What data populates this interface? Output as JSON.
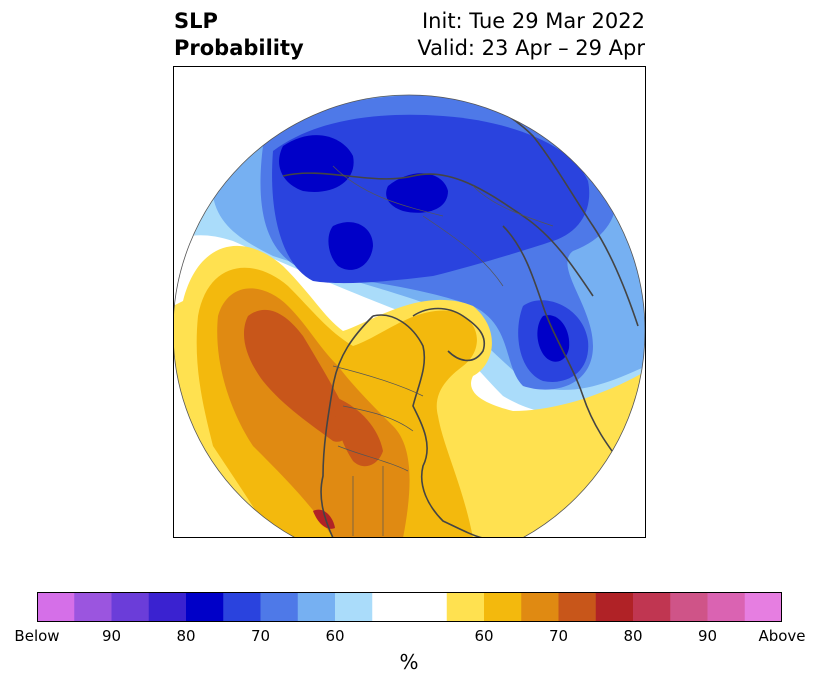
{
  "title": {
    "left_line1": "SLP",
    "left_line2": "Probability",
    "right_line1": "Init: Tue 29 Mar 2022",
    "right_line2": "Valid: 23 Apr – 29 Apr"
  },
  "colorbar": {
    "label": "%",
    "colors": [
      "#d56fe8",
      "#9b55df",
      "#6b3dd9",
      "#3a22d0",
      "#0000c8",
      "#2a43de",
      "#4e79e8",
      "#76b0f2",
      "#aadcfa",
      "#ffffff",
      "#ffffff",
      "#ffe150",
      "#f3b90d",
      "#e08a12",
      "#c8561a",
      "#b02226",
      "#c03651",
      "#cf5488",
      "#da63b2",
      "#e67ee1"
    ],
    "ticks": [
      "Below",
      "90",
      "80",
      "70",
      "60",
      "",
      "60",
      "70",
      "80",
      "90",
      "Above"
    ]
  }
}
